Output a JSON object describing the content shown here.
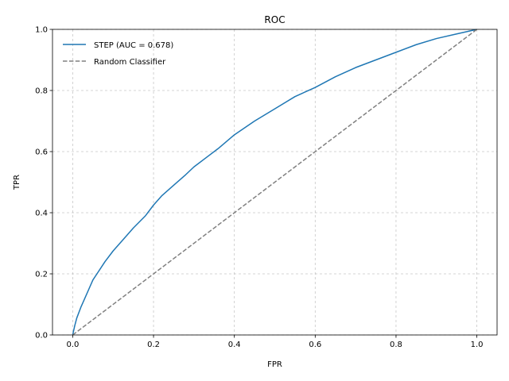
{
  "chart_data": {
    "type": "line",
    "title": "ROC",
    "xlabel": "FPR",
    "ylabel": "TPR",
    "xlim": [
      -0.05,
      1.05
    ],
    "ylim": [
      0.0,
      1.0
    ],
    "xticks": [
      0.0,
      0.2,
      0.4,
      0.6,
      0.8,
      1.0
    ],
    "yticks": [
      0.0,
      0.2,
      0.4,
      0.6,
      0.8,
      1.0
    ],
    "xtick_labels": [
      "0.0",
      "0.2",
      "0.4",
      "0.6",
      "0.8",
      "1.0"
    ],
    "ytick_labels": [
      "0.0",
      "0.2",
      "0.4",
      "0.6",
      "0.8",
      "1.0"
    ],
    "grid": true,
    "legend_position": "upper-left",
    "series": [
      {
        "name": "STEP (AUC = 0.678)",
        "color": "#1f77b4",
        "style": "solid",
        "x": [
          0.0,
          0.005,
          0.01,
          0.02,
          0.03,
          0.04,
          0.05,
          0.06,
          0.08,
          0.1,
          0.12,
          0.15,
          0.18,
          0.2,
          0.22,
          0.25,
          0.28,
          0.3,
          0.33,
          0.36,
          0.4,
          0.45,
          0.5,
          0.55,
          0.6,
          0.65,
          0.7,
          0.75,
          0.8,
          0.85,
          0.9,
          0.95,
          1.0
        ],
        "y": [
          0.0,
          0.03,
          0.055,
          0.09,
          0.12,
          0.15,
          0.18,
          0.2,
          0.24,
          0.275,
          0.305,
          0.35,
          0.39,
          0.425,
          0.455,
          0.49,
          0.525,
          0.55,
          0.58,
          0.61,
          0.655,
          0.7,
          0.74,
          0.78,
          0.81,
          0.845,
          0.875,
          0.9,
          0.925,
          0.95,
          0.97,
          0.985,
          1.0
        ]
      },
      {
        "name": "Random Classifier",
        "color": "#808080",
        "style": "dashed",
        "x": [
          0.0,
          1.0
        ],
        "y": [
          0.0,
          1.0
        ]
      }
    ]
  }
}
